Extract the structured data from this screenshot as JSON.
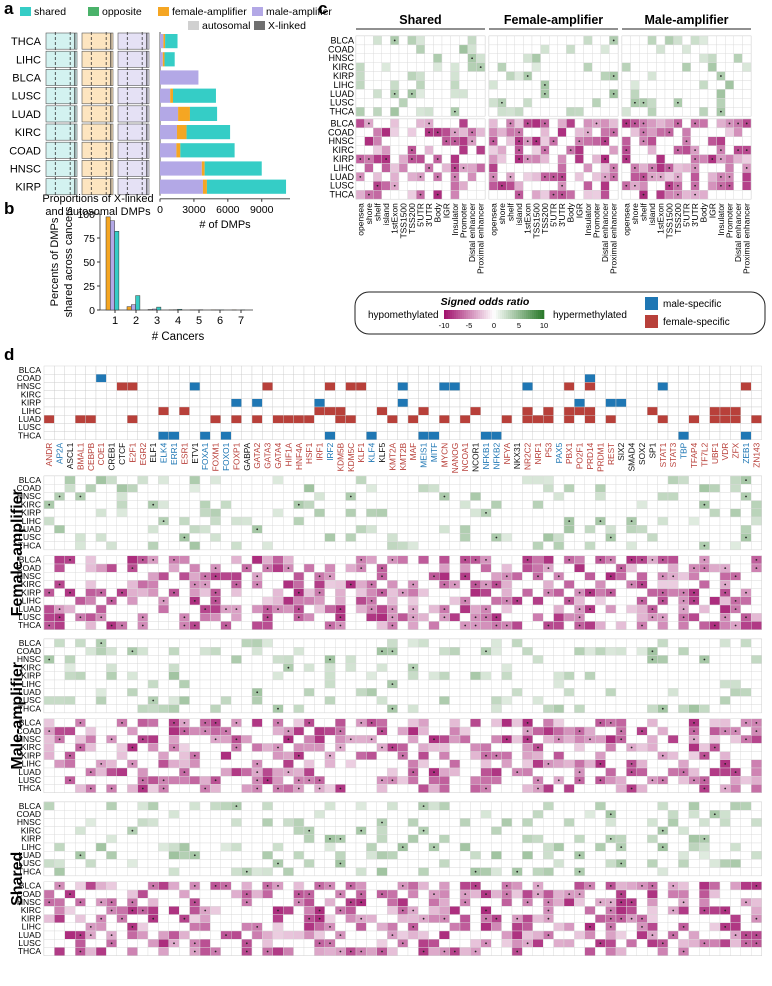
{
  "panels": {
    "a": "a",
    "b": "b",
    "c": "c",
    "d": "d"
  },
  "legend_a": {
    "items": [
      {
        "label": "shared",
        "color": "#35cdc6"
      },
      {
        "label": "opposite",
        "color": "#4ab26a"
      },
      {
        "label": "female-amplifier",
        "color": "#f5a623"
      },
      {
        "label": "male-amplifier",
        "color": "#b3a8e6"
      },
      {
        "label": "autosomal",
        "color": "#d0d0d0"
      },
      {
        "label": "X-linked",
        "color": "#707070"
      }
    ]
  },
  "colors": {
    "shared": "#35cdc6",
    "opposite": "#4ab26a",
    "female": "#f5a623",
    "male": "#b3a8e6",
    "autosomal": "#d0d0d0",
    "xlinked": "#707070",
    "male_specific": "#1f77b4",
    "female_specific": "#b8403a",
    "hypo": "#a2146e",
    "hyper": "#2c7a2c"
  },
  "chart_data": [
    {
      "type": "bar",
      "panel": "a",
      "orientation": "horizontal",
      "categories": [
        "THCA",
        "LIHC",
        "BLCA",
        "LUSC",
        "LUAD",
        "KIRC",
        "COAD",
        "HNSC",
        "KIRP"
      ],
      "series": [
        {
          "name": "male-amplifier",
          "values": [
            300,
            250,
            3400,
            900,
            1600,
            1500,
            1450,
            3700,
            3800
          ]
        },
        {
          "name": "female-amplifier",
          "values": [
            150,
            150,
            0,
            250,
            1050,
            850,
            350,
            250,
            350
          ]
        },
        {
          "name": "shared",
          "values": [
            1100,
            900,
            0,
            3800,
            2400,
            3850,
            4800,
            5050,
            7000
          ]
        }
      ],
      "xlabel": "# of DMPs",
      "xticks": [
        "0",
        "3000",
        "6000",
        "9000"
      ],
      "xlim": [
        0,
        11500
      ]
    },
    {
      "type": "bar",
      "panel": "a-left",
      "categories": [
        "THCA",
        "LIHC",
        "BLCA",
        "LUSC",
        "LUAD",
        "KIRC",
        "COAD",
        "HNSC",
        "KIRP"
      ],
      "groups": [
        "shared",
        "female-amplifier",
        "male-amplifier"
      ],
      "xlabel": "Proportions of X-linked\nand autosomal DMPs"
    },
    {
      "type": "bar",
      "panel": "b",
      "categories": [
        "1",
        "2",
        "3",
        "4",
        "5",
        "6",
        "7"
      ],
      "series": [
        {
          "name": "female-amplifier",
          "values": [
            97,
            3.5,
            0.5,
            0.2,
            0.1,
            0.1,
            0.1
          ]
        },
        {
          "name": "male-amplifier",
          "values": [
            93,
            5.5,
            1.0,
            0.3,
            0.1,
            0.1,
            0
          ]
        },
        {
          "name": "shared",
          "values": [
            82,
            15,
            3.0,
            0.8,
            0.3,
            0.1,
            0.1
          ]
        },
        {
          "name": "opposite",
          "values": [
            0,
            0,
            0,
            0,
            0,
            0,
            0
          ]
        }
      ],
      "xlabel": "# Cancers",
      "ylabel": "Percents of DMPs\nshared across cancers",
      "ylim": [
        0,
        100
      ],
      "yticks": [
        "0",
        "25",
        "50",
        "75",
        "100"
      ]
    },
    {
      "type": "heatmap",
      "panel": "c",
      "groups": [
        "Shared",
        "Female-amplifier",
        "Male-amplifier"
      ],
      "rows": [
        "BLCA",
        "COAD",
        "HNSC",
        "KIRC",
        "KIRP",
        "LIHC",
        "LUAD",
        "LUSC",
        "THCA"
      ],
      "columns": [
        "opensea",
        "shore",
        "shelf",
        "island",
        "1stExon",
        "TSS1500",
        "TSS200",
        "5'UTR",
        "3'UTR",
        "Body",
        "IGR",
        "Insulator",
        "Promoter",
        "Distal enhancer",
        "Proximal enhancer"
      ],
      "legend_title": "Signed odds ratio",
      "legend_ticks": [
        "-10",
        "-5",
        "0",
        "5",
        "10"
      ],
      "legend_left": "hypomethylated",
      "legend_right": "hypermethylated",
      "specific_legend": [
        {
          "label": "male-specific"
        },
        {
          "label": "female-specific"
        }
      ]
    },
    {
      "type": "heatmap",
      "panel": "d",
      "groups": [
        "Female-amplifier",
        "Male-amplifier",
        "Shared"
      ],
      "rows": [
        "BLCA",
        "COAD",
        "HNSC",
        "KIRC",
        "KIRP",
        "LIHC",
        "LUAD",
        "LUSC",
        "THCA"
      ],
      "columns": [
        "ANDR",
        "AP2A",
        "ASCL1",
        "BMAL1",
        "CEBPB",
        "COE1",
        "CREB1",
        "CTCF",
        "E2F1",
        "EGR2",
        "ELF1",
        "ELK4",
        "ERR1",
        "ESR1",
        "ETV1",
        "FOXA1",
        "FOXM1",
        "FOXO1",
        "FOXP1",
        "GABPA",
        "GATA2",
        "GATA3",
        "GATA4",
        "HIF1A",
        "HNF4A",
        "HSF1",
        "IRF1",
        "IRF2",
        "KDM5B",
        "KDM5C",
        "KLF1",
        "KLF4",
        "KLF5",
        "KMT2A",
        "KMT2B",
        "MAF",
        "MEIS1",
        "MITF",
        "MYCN",
        "NANOG",
        "NCOA1",
        "NCOR1",
        "NFKB1",
        "NFKB2",
        "NFYA",
        "NKX31",
        "NR2C2",
        "NRF1",
        "P53",
        "PAX5",
        "PBX1",
        "PO2F1",
        "PRD14",
        "PRDM1",
        "REST",
        "SIX2",
        "SMAD4",
        "SOX2",
        "SP1",
        "STAT1",
        "STAT3",
        "TBP",
        "TFAP4",
        "TF7L2",
        "UBF1",
        "VDR",
        "ZFX",
        "ZEB1",
        "ZN143"
      ],
      "column_colors": [
        "red",
        "blue",
        "black",
        "red",
        "red",
        "red",
        "black",
        "black",
        "red",
        "red",
        "black",
        "blue",
        "blue",
        "red",
        "black",
        "blue",
        "red",
        "blue",
        "red",
        "black",
        "red",
        "red",
        "red",
        "red",
        "red",
        "red",
        "red",
        "blue",
        "red",
        "red",
        "red",
        "blue",
        "black",
        "red",
        "red",
        "red",
        "blue",
        "blue",
        "red",
        "red",
        "red",
        "black",
        "blue",
        "blue",
        "red",
        "black",
        "red",
        "red",
        "red",
        "blue",
        "red",
        "red",
        "red",
        "red",
        "red",
        "black",
        "black",
        "black",
        "black",
        "red",
        "red",
        "blue",
        "red",
        "red",
        "red",
        "red",
        "red",
        "blue",
        "red"
      ]
    }
  ]
}
